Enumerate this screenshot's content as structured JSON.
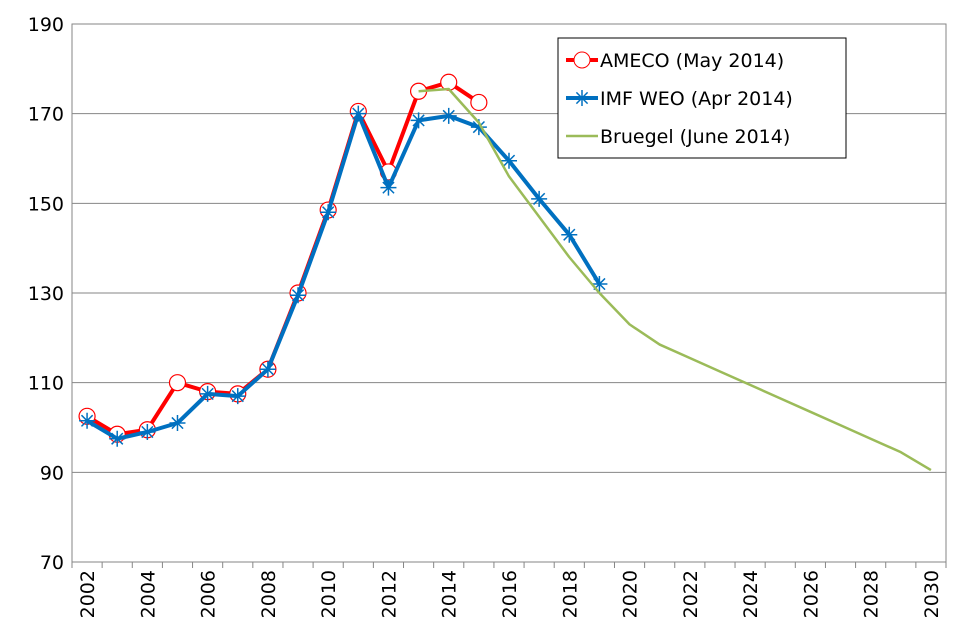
{
  "chart_data": {
    "type": "line",
    "categories": [
      "2002",
      null,
      "2004",
      null,
      "2006",
      null,
      "2008",
      null,
      "2010",
      null,
      "2012",
      null,
      "2014",
      null,
      "2016",
      null,
      "2018",
      null,
      "2020",
      null,
      "2022",
      null,
      "2024",
      null,
      "2026",
      null,
      "2028",
      null,
      "2030"
    ],
    "series": [
      {
        "name": "AMECO (May 2014)",
        "color": "#ff0000",
        "marker": "circle",
        "values": [
          102.5,
          98.5,
          99.5,
          110,
          108,
          107.5,
          113,
          130,
          148.5,
          170.5,
          157,
          175,
          177,
          172.5,
          null,
          null,
          null,
          null,
          null,
          null,
          null,
          null,
          null,
          null,
          null,
          null,
          null,
          null,
          null
        ]
      },
      {
        "name": "IMF WEO (Apr 2014)",
        "color": "#0070c0",
        "marker": "star",
        "values": [
          101.5,
          97.5,
          99,
          101,
          107.5,
          107,
          113,
          129.5,
          148,
          170,
          153.5,
          168.5,
          169.5,
          167,
          159.5,
          151,
          143,
          132,
          null,
          null,
          null,
          null,
          null,
          null,
          null,
          null,
          null,
          null,
          null
        ]
      },
      {
        "name": "Bruegel (June 2014)",
        "color": "#9bbb59",
        "marker": "none",
        "values": [
          null,
          null,
          null,
          null,
          null,
          null,
          null,
          null,
          null,
          null,
          null,
          175,
          175.5,
          168,
          156,
          147,
          138,
          130,
          123,
          118.5,
          115.5,
          112.5,
          109.5,
          106.5,
          103.5,
          100.5,
          97.5,
          94.5,
          90.5
        ]
      }
    ],
    "ylim": [
      70,
      190
    ],
    "yticks": [
      70,
      90,
      110,
      130,
      150,
      170,
      190
    ],
    "grid": true,
    "legend": "upper right"
  }
}
